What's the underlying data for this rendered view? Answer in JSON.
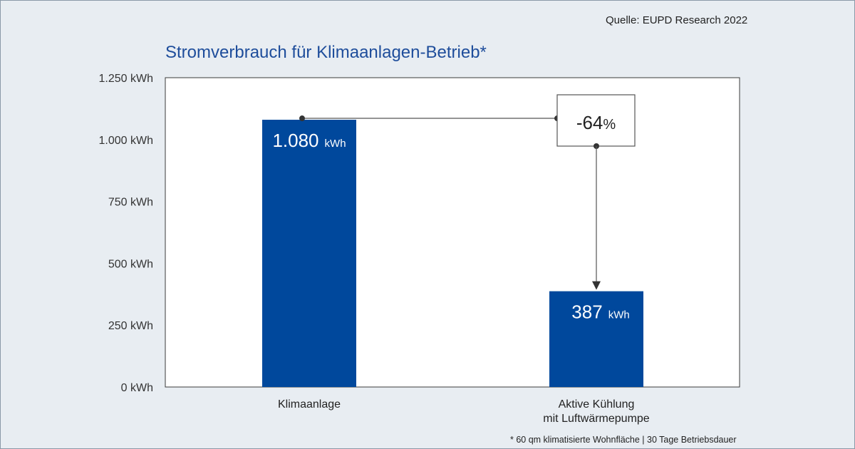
{
  "source": "Quelle: EUPD Research 2022",
  "footnote": "* 60 qm klimatisierte Wohnfläche | 30 Tage Betriebsdauer",
  "colors": {
    "bar": "#00489c",
    "title": "#1e4d9b",
    "background": "#e8edf2"
  },
  "chart_data": {
    "type": "bar",
    "title": "Stromverbrauch für Klimaanlagen-Betrieb*",
    "categories": [
      [
        "Klimaanlage"
      ],
      [
        "Aktive Kühlung",
        "mit Luftwärmepumpe"
      ]
    ],
    "values": [
      1080,
      387
    ],
    "value_labels": [
      {
        "number": "1.080",
        "unit": "kWh"
      },
      {
        "number": "387",
        "unit": "kWh"
      }
    ],
    "unit": "kWh",
    "ylim": [
      0,
      1250
    ],
    "yticks": [
      0,
      250,
      500,
      750,
      1000,
      1250
    ],
    "ytick_labels": [
      "0 kWh",
      "250 kWh",
      "500 kWh",
      "750 kWh",
      "1.000 kWh",
      "1.250 kWh"
    ],
    "grid": false,
    "annotation": {
      "number": "-64",
      "unit": "%"
    }
  }
}
